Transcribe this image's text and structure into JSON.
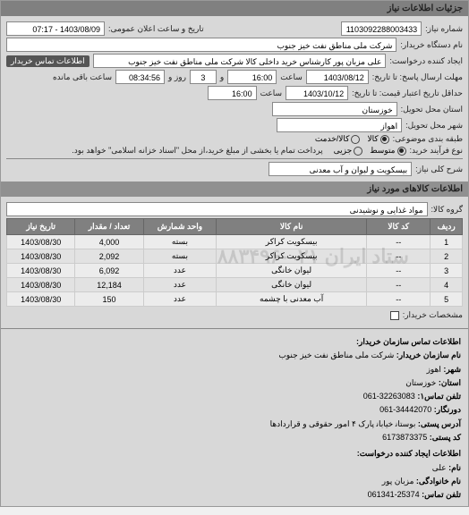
{
  "headerTitle": "جزئیات اطلاعات نیاز",
  "fields": {
    "requestNoLabel": "شماره نیاز:",
    "requestNo": "1103092288003433",
    "announceLabel": "تاریخ و ساعت اعلان عمومی:",
    "announce": "1403/08/09 - 07:17",
    "buyerOrgLabel": "نام دستگاه خریدار:",
    "buyerOrg": "شرکت ملی مناطق نفت خیز جنوب",
    "requesterLabel": "ایجاد کننده درخواست:",
    "requester": "علی  مزبان پور  کارشناس خرید داخلی کالا  شرکت ملی مناطق نفت خیز جنوب",
    "buyerContactBadge": "اطلاعات تماس خریدار",
    "respDeadlineLabel": "مهلت ارسال پاسخ: تا تاریخ:",
    "respDate": "1403/08/12",
    "respTimeLabel": "ساعت",
    "respTime": "16:00",
    "andLabel": "و",
    "daysLeft": "3",
    "daysLeftLabel": "روز و",
    "timeLeft": "08:34:56",
    "timeLeftLabel": "ساعت باقی مانده",
    "validityLabel": "حداقل تاریخ اعتبار قیمت: تا تاریخ:",
    "validityDate": "1403/10/12",
    "validityTime": "16:00",
    "provinceLabel": "استان محل تحویل:",
    "province": "خوزستان",
    "cityLabel": "شهر محل تحویل:",
    "city": "اهواز",
    "subjectTypeLabel": "طبقه بندی موضوعی:",
    "subjectOptions": {
      "goods": "کالا",
      "service": "کالا/خدمت"
    },
    "buyTypeLabel": "نوع فرآیند خرید:",
    "buyOptions": {
      "small": "متوسط",
      "partial": "جزیی"
    },
    "buyNote": "پرداخت تمام یا بخشی از مبلغ خرید،از محل \"اسناد خزانه اسلامی\" خواهد بود.",
    "needTitleLabel": "شرح کلی نیاز:",
    "needTitle": "بیسکویت و لیوان و آب معدنی",
    "itemsHeader": "اطلاعات کالاهای مورد نیاز",
    "groupLabel": "گروه کالا:",
    "group": "مواد غذایی و نوشیدنی",
    "attachLabel": "مشخصات خریدار:"
  },
  "table": {
    "columns": [
      "ردیف",
      "کد کالا",
      "نام کالا",
      "واحد شمارش",
      "تعداد / مقدار",
      "تاریخ نیاز"
    ],
    "colWidths": [
      "7%",
      "14%",
      "33%",
      "16%",
      "15%",
      "15%"
    ],
    "rows": [
      [
        "1",
        "--",
        "بیسکویت کراکر",
        "بسته",
        "4,000",
        "1403/08/30"
      ],
      [
        "2",
        "--",
        "بیسکویت کراکر",
        "بسته",
        "2,092",
        "1403/08/30"
      ],
      [
        "3",
        "--",
        "لیوان خانگی",
        "عدد",
        "6,092",
        "1403/08/30"
      ],
      [
        "4",
        "--",
        "لیوان خانگی",
        "عدد",
        "12,184",
        "1403/08/30"
      ],
      [
        "5",
        "--",
        "آب معدنی با چشمه",
        "عدد",
        "150",
        "1403/08/30"
      ]
    ]
  },
  "watermark": "ستاد ایران   ۰۲۱-۸۸۳۴۹۶",
  "contact": {
    "header1": "اطلاعات تماس سازمان خریدار:",
    "orgLabel": "نام سازمان خریدار:",
    "org": "شرکت ملی مناطق نفت خیز جنوب",
    "cityLabel": "شهر:",
    "city": "اهوز",
    "provLabel": "استان:",
    "prov": "خوزستان",
    "tel1Label": "تلفن تماس۱:",
    "tel1": "32263083-061",
    "tel2Label": "دورنگار:",
    "tel2": "34442070-061",
    "addrLabel": "آدرس پستی:",
    "addr": "بوستاﻧ خیاباﻧ پارک ۴ امور حقوقی و قراردادها",
    "postLabel": "کد پستی:",
    "post": "6173873375",
    "header2": "اطلاعات ایجاد کننده درخواست:",
    "fnameLabel": "نام:",
    "fname": "علی",
    "lnameLabel": "نام خانوادگی:",
    "lname": "مزبان پور",
    "phoneLabel": "تلفن تماس:",
    "phone": "25374-061341"
  }
}
